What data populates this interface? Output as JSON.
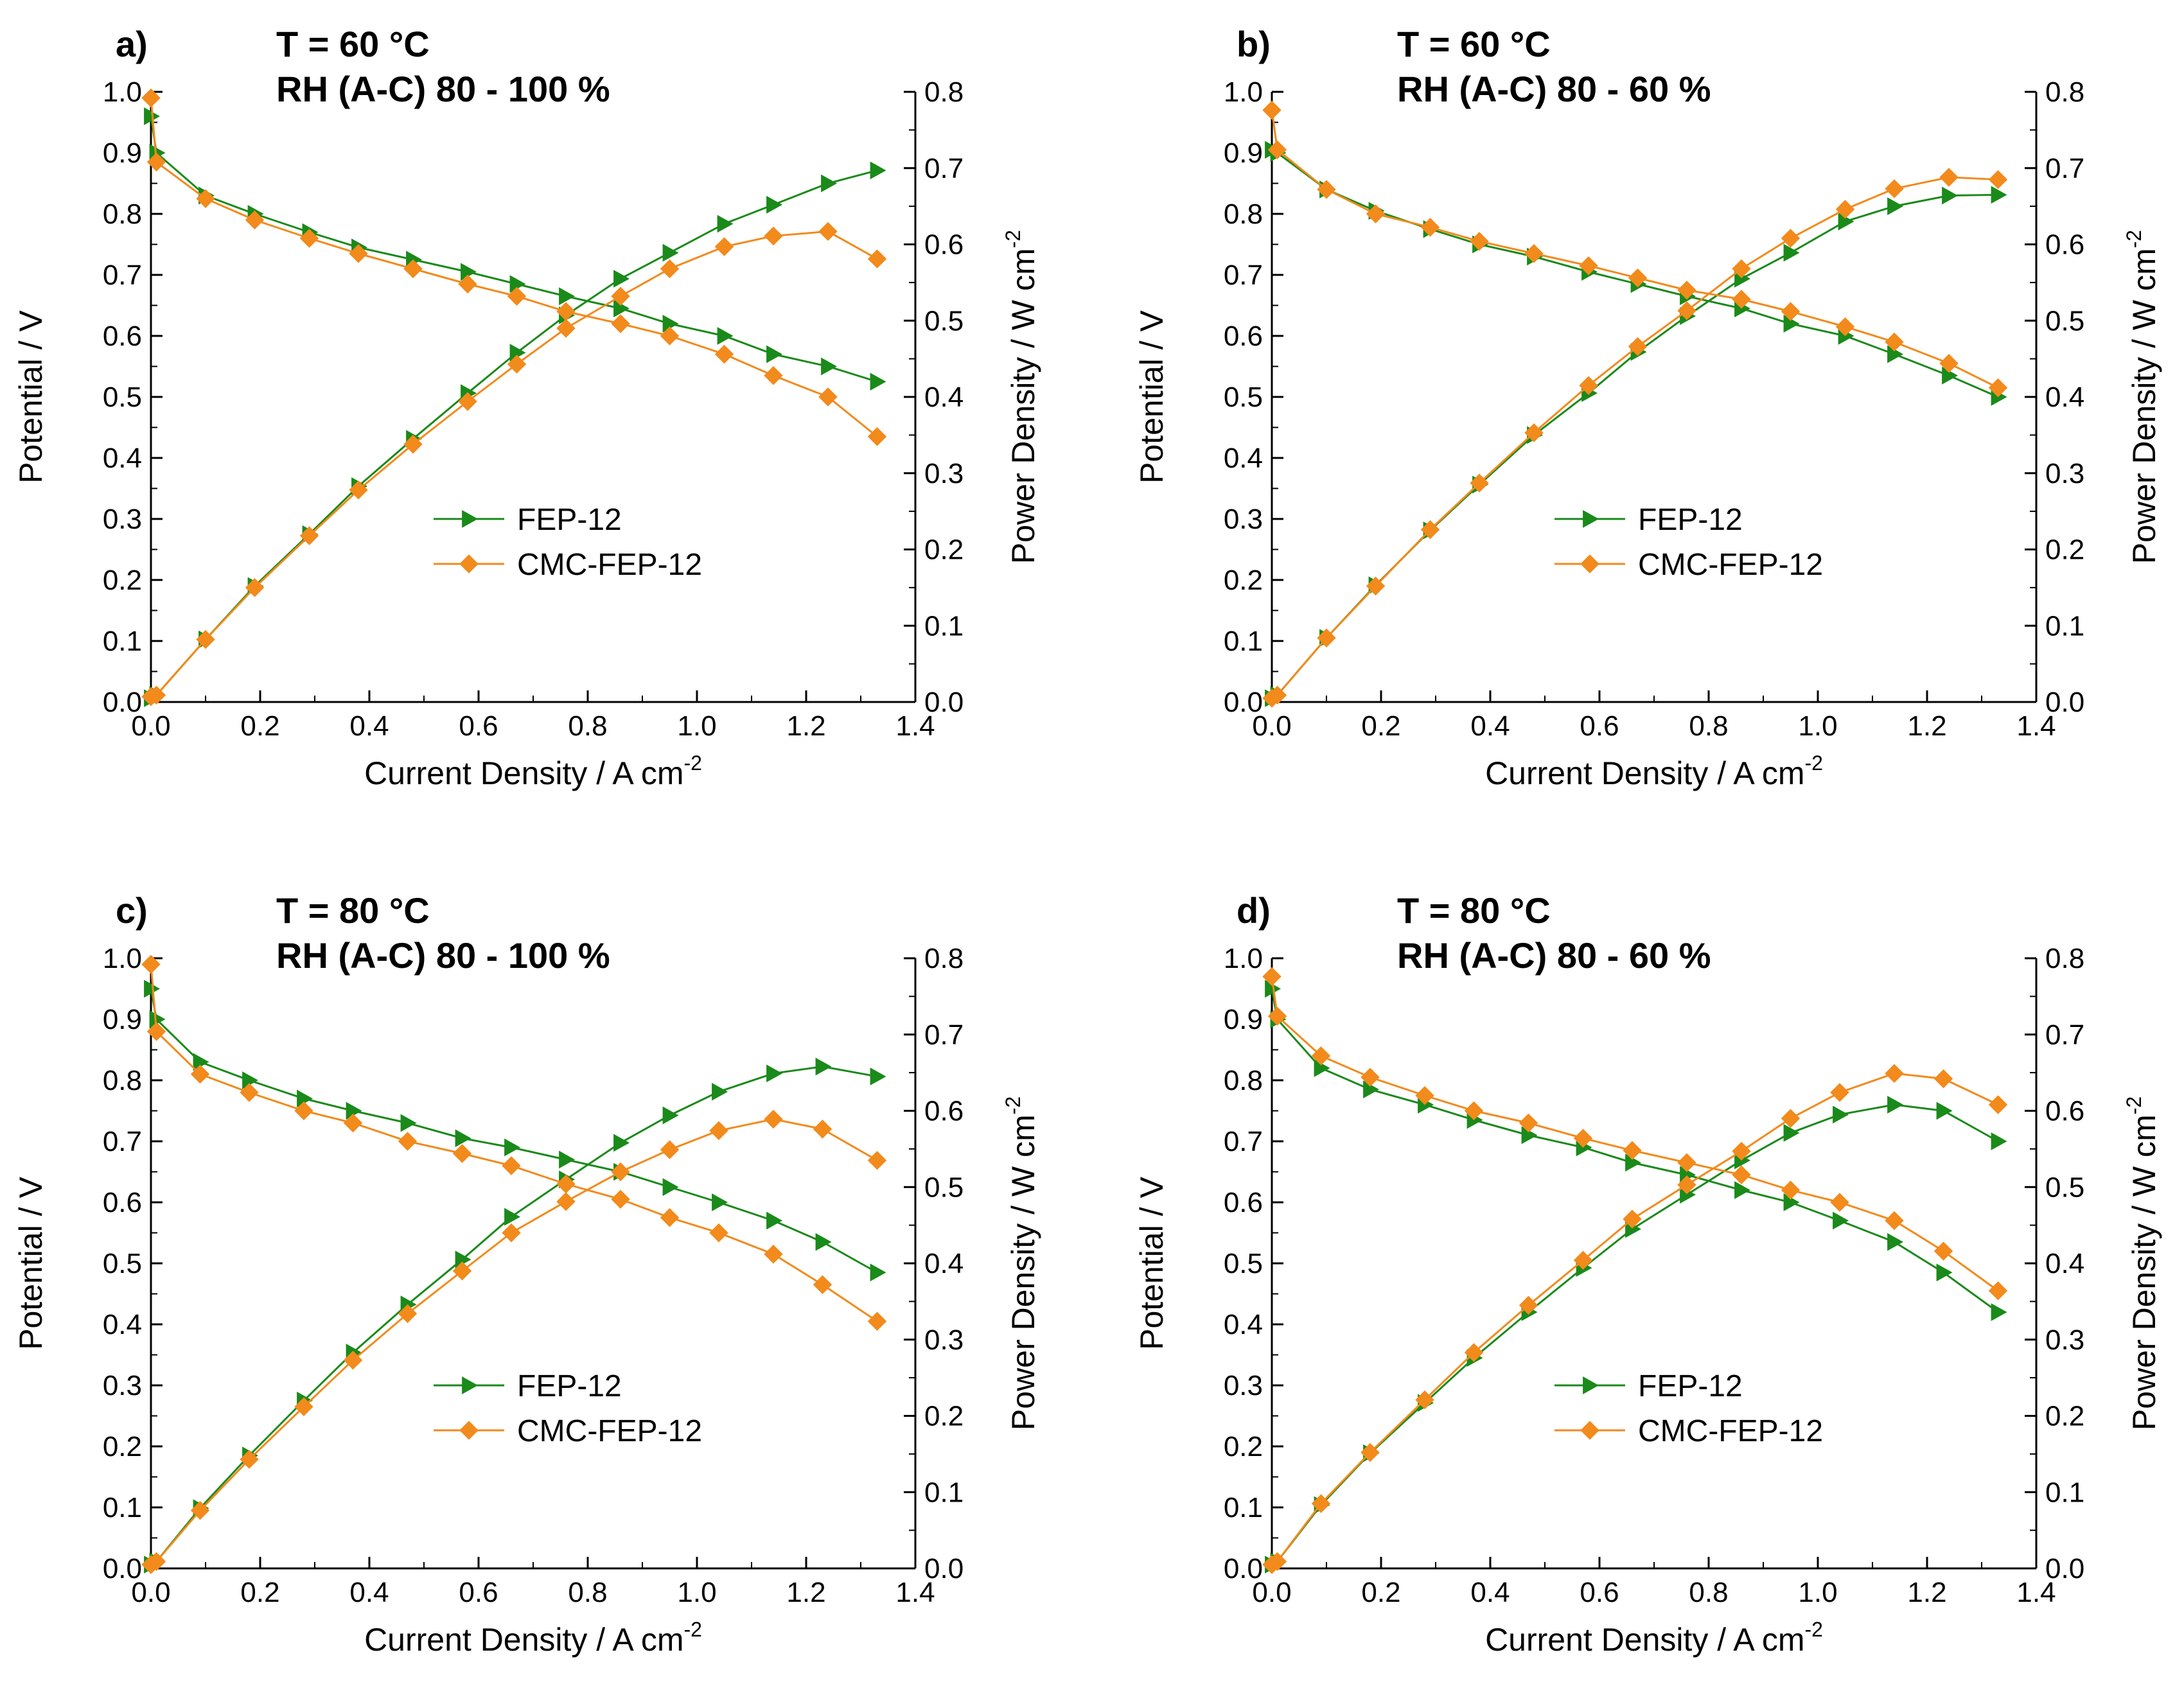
{
  "chart_data": [
    {
      "type": "line",
      "panel": "a)",
      "conditions": [
        "T = 60 °C",
        "RH (A-C) 80 - 100 %"
      ],
      "xlabel": "Current Density / A cm",
      "xlabel_sup": "-2",
      "ylabel": "Potential / V",
      "y2label": "Power Density / W cm",
      "y2label_sup": "-2",
      "xlim": [
        0,
        1.4
      ],
      "ylim": [
        0,
        1.0
      ],
      "y2lim": [
        0,
        0.8
      ],
      "xticks": [
        "0.0",
        "0.2",
        "0.4",
        "0.6",
        "0.8",
        "1.0",
        "1.2",
        "1.4"
      ],
      "yticks": [
        "0.0",
        "0.1",
        "0.2",
        "0.3",
        "0.4",
        "0.5",
        "0.6",
        "0.7",
        "0.8",
        "0.9",
        "1.0"
      ],
      "y2ticks": [
        "0.0",
        "0.1",
        "0.2",
        "0.3",
        "0.4",
        "0.5",
        "0.6",
        "0.7",
        "0.8"
      ],
      "legend": [
        "FEP-12",
        "CMC-FEP-12"
      ],
      "legend_position": "center",
      "x": [
        0.0,
        0.01,
        0.1,
        0.19,
        0.29,
        0.38,
        0.48,
        0.58,
        0.67,
        0.76,
        0.86,
        0.95,
        1.05,
        1.14,
        1.24,
        1.33
      ],
      "series": [
        {
          "name": "FEP-12",
          "color": "#1a8a1a",
          "marker": "triangle-right",
          "potential": [
            0.96,
            0.9,
            0.83,
            0.8,
            0.77,
            0.745,
            0.725,
            0.705,
            0.685,
            0.665,
            0.645,
            0.62,
            0.6,
            0.57,
            0.55,
            0.525
          ],
          "power": [
            0.005,
            0.009,
            0.082,
            0.152,
            0.22,
            0.283,
            0.345,
            0.405,
            0.458,
            0.507,
            0.555,
            0.589,
            0.627,
            0.652,
            0.68,
            0.697
          ]
        },
        {
          "name": "CMC-FEP-12",
          "color": "#f28a1c",
          "marker": "diamond",
          "potential": [
            0.99,
            0.885,
            0.825,
            0.79,
            0.76,
            0.735,
            0.71,
            0.685,
            0.665,
            0.64,
            0.62,
            0.6,
            0.57,
            0.535,
            0.5,
            0.435
          ],
          "power": [
            0.007,
            0.009,
            0.082,
            0.15,
            0.218,
            0.278,
            0.338,
            0.394,
            0.443,
            0.49,
            0.532,
            0.568,
            0.597,
            0.611,
            0.617,
            0.581
          ]
        }
      ]
    },
    {
      "type": "line",
      "panel": "b)",
      "conditions": [
        "T = 60 °C",
        "RH (A-C) 80 - 60 %"
      ],
      "xlabel": "Current Density / A cm",
      "xlabel_sup": "-2",
      "ylabel": "Potential / V",
      "y2label": "Power Density / W cm",
      "y2label_sup": "-2",
      "xlim": [
        0,
        1.4
      ],
      "ylim": [
        0,
        1.0
      ],
      "y2lim": [
        0,
        0.8
      ],
      "xticks": [
        "0.0",
        "0.2",
        "0.4",
        "0.6",
        "0.8",
        "1.0",
        "1.2",
        "1.4"
      ],
      "yticks": [
        "0.0",
        "0.1",
        "0.2",
        "0.3",
        "0.4",
        "0.5",
        "0.6",
        "0.7",
        "0.8",
        "0.9",
        "1.0"
      ],
      "y2ticks": [
        "0.0",
        "0.1",
        "0.2",
        "0.3",
        "0.4",
        "0.5",
        "0.6",
        "0.7",
        "0.8"
      ],
      "legend": [
        "FEP-12",
        "CMC-FEP-12"
      ],
      "legend_position": "center",
      "x": [
        0.0,
        0.01,
        0.1,
        0.19,
        0.29,
        0.38,
        0.48,
        0.58,
        0.67,
        0.76,
        0.86,
        0.95,
        1.05,
        1.14,
        1.24,
        1.33
      ],
      "series": [
        {
          "name": "FEP-12",
          "color": "#1a8a1a",
          "marker": "triangle-right",
          "potential": [
            0.905,
            0.9,
            0.84,
            0.805,
            0.775,
            0.75,
            0.73,
            0.705,
            0.685,
            0.665,
            0.645,
            0.62,
            0.6,
            0.57,
            0.535,
            0.5
          ],
          "power": [
            0.005,
            0.009,
            0.084,
            0.153,
            0.225,
            0.285,
            0.35,
            0.405,
            0.459,
            0.506,
            0.555,
            0.589,
            0.63,
            0.65,
            0.664,
            0.665
          ]
        },
        {
          "name": "CMC-FEP-12",
          "color": "#f28a1c",
          "marker": "diamond",
          "potential": [
            0.97,
            0.905,
            0.84,
            0.8,
            0.778,
            0.755,
            0.735,
            0.715,
            0.695,
            0.675,
            0.66,
            0.64,
            0.615,
            0.59,
            0.555,
            0.515
          ],
          "power": [
            0.005,
            0.009,
            0.084,
            0.152,
            0.226,
            0.287,
            0.353,
            0.415,
            0.466,
            0.513,
            0.568,
            0.608,
            0.646,
            0.673,
            0.688,
            0.685
          ]
        }
      ]
    },
    {
      "type": "line",
      "panel": "c)",
      "conditions": [
        "T = 80 °C",
        "RH (A-C) 80 - 100 %"
      ],
      "xlabel": "Current Density / A cm",
      "xlabel_sup": "-2",
      "ylabel": "Potential / V",
      "y2label": "Power Density / W cm",
      "y2label_sup": "-2",
      "xlim": [
        0,
        1.4
      ],
      "ylim": [
        0,
        1.0
      ],
      "y2lim": [
        0,
        0.8
      ],
      "xticks": [
        "0.0",
        "0.2",
        "0.4",
        "0.6",
        "0.8",
        "1.0",
        "1.2",
        "1.4"
      ],
      "yticks": [
        "0.0",
        "0.1",
        "0.2",
        "0.3",
        "0.4",
        "0.5",
        "0.6",
        "0.7",
        "0.8",
        "0.9",
        "1.0"
      ],
      "y2ticks": [
        "0.0",
        "0.1",
        "0.2",
        "0.3",
        "0.4",
        "0.5",
        "0.6",
        "0.7",
        "0.8"
      ],
      "legend": [
        "FEP-12",
        "CMC-FEP-12"
      ],
      "legend_position": "center",
      "x": [
        0.0,
        0.01,
        0.09,
        0.18,
        0.28,
        0.37,
        0.47,
        0.57,
        0.66,
        0.76,
        0.86,
        0.95,
        1.04,
        1.14,
        1.23,
        1.33
      ],
      "series": [
        {
          "name": "FEP-12",
          "color": "#1a8a1a",
          "marker": "triangle-right",
          "potential": [
            0.95,
            0.9,
            0.83,
            0.8,
            0.77,
            0.75,
            0.73,
            0.705,
            0.69,
            0.67,
            0.65,
            0.625,
            0.6,
            0.57,
            0.535,
            0.485
          ],
          "power": [
            0.005,
            0.009,
            0.079,
            0.148,
            0.22,
            0.283,
            0.346,
            0.405,
            0.461,
            0.51,
            0.558,
            0.594,
            0.625,
            0.649,
            0.658,
            0.645
          ]
        },
        {
          "name": "CMC-FEP-12",
          "color": "#f28a1c",
          "marker": "diamond",
          "potential": [
            0.99,
            0.88,
            0.81,
            0.78,
            0.75,
            0.73,
            0.7,
            0.68,
            0.66,
            0.63,
            0.605,
            0.575,
            0.55,
            0.515,
            0.465,
            0.405
          ],
          "power": [
            0.005,
            0.009,
            0.076,
            0.143,
            0.212,
            0.273,
            0.334,
            0.39,
            0.44,
            0.481,
            0.52,
            0.549,
            0.574,
            0.589,
            0.576,
            0.535
          ]
        }
      ]
    },
    {
      "type": "line",
      "panel": "d)",
      "conditions": [
        "T = 80 °C",
        "RH (A-C) 80 - 60 %"
      ],
      "xlabel": "Current Density / A cm",
      "xlabel_sup": "-2",
      "ylabel": "Potential / V",
      "y2label": "Power Density / W cm",
      "y2label_sup": "-2",
      "xlim": [
        0,
        1.4
      ],
      "ylim": [
        0,
        1.0
      ],
      "y2lim": [
        0,
        0.8
      ],
      "xticks": [
        "0.0",
        "0.2",
        "0.4",
        "0.6",
        "0.8",
        "1.0",
        "1.2",
        "1.4"
      ],
      "yticks": [
        "0.0",
        "0.1",
        "0.2",
        "0.3",
        "0.4",
        "0.5",
        "0.6",
        "0.7",
        "0.8",
        "0.9",
        "1.0"
      ],
      "y2ticks": [
        "0.0",
        "0.1",
        "0.2",
        "0.3",
        "0.4",
        "0.5",
        "0.6",
        "0.7",
        "0.8"
      ],
      "legend": [
        "FEP-12",
        "CMC-FEP-12"
      ],
      "legend_position": "center",
      "x": [
        0.0,
        0.01,
        0.09,
        0.18,
        0.28,
        0.37,
        0.47,
        0.57,
        0.66,
        0.76,
        0.86,
        0.95,
        1.04,
        1.14,
        1.23,
        1.33
      ],
      "series": [
        {
          "name": "FEP-12",
          "color": "#1a8a1a",
          "marker": "triangle-right",
          "potential": [
            0.95,
            0.9,
            0.82,
            0.785,
            0.76,
            0.735,
            0.71,
            0.69,
            0.665,
            0.645,
            0.62,
            0.6,
            0.57,
            0.535,
            0.485,
            0.42
          ],
          "power": [
            0.005,
            0.009,
            0.083,
            0.151,
            0.217,
            0.276,
            0.336,
            0.394,
            0.445,
            0.49,
            0.535,
            0.571,
            0.595,
            0.608,
            0.6,
            0.56
          ]
        },
        {
          "name": "CMC-FEP-12",
          "color": "#f28a1c",
          "marker": "diamond",
          "potential": [
            0.97,
            0.905,
            0.84,
            0.805,
            0.775,
            0.75,
            0.73,
            0.705,
            0.685,
            0.665,
            0.645,
            0.62,
            0.6,
            0.57,
            0.52,
            0.455
          ],
          "power": [
            0.005,
            0.009,
            0.085,
            0.152,
            0.221,
            0.283,
            0.345,
            0.404,
            0.458,
            0.503,
            0.547,
            0.59,
            0.624,
            0.649,
            0.642,
            0.608
          ]
        }
      ]
    }
  ]
}
